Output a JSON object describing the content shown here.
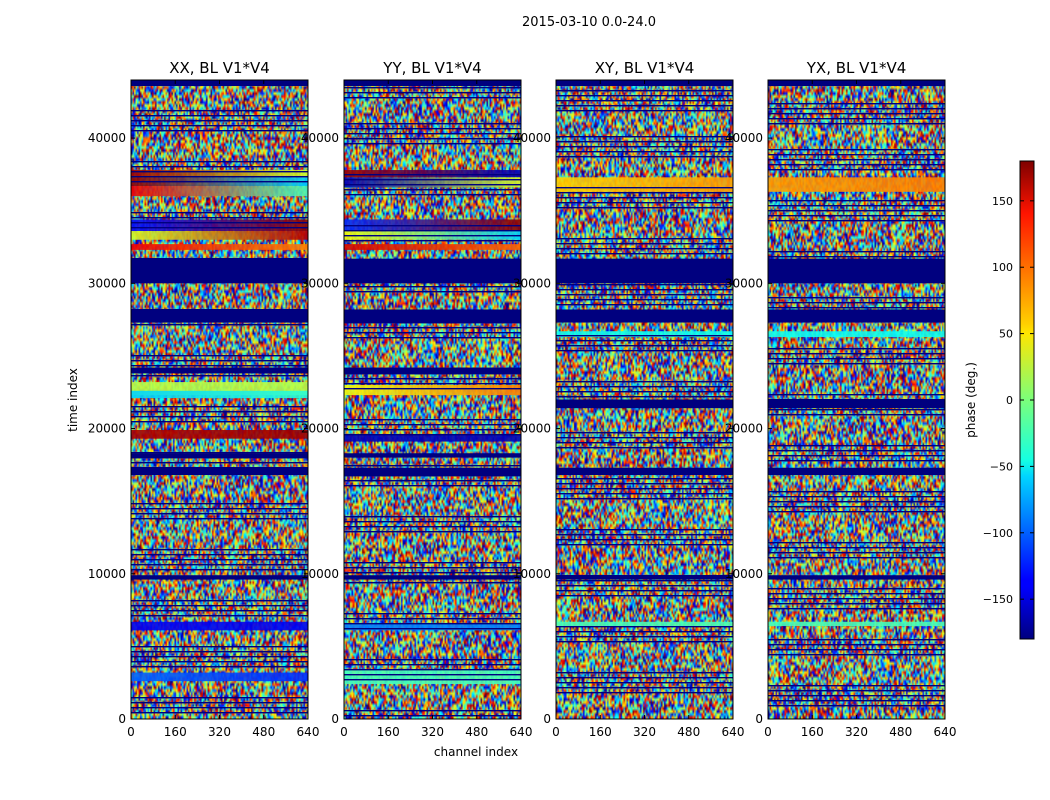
{
  "chart_data": {
    "type": "heatmap",
    "suptitle": "2015-03-10 0.0-24.0",
    "xlabel": "channel index",
    "ylabel": "time index",
    "xlim": [
      0,
      640
    ],
    "ylim": [
      0,
      44000
    ],
    "xticks": [
      0,
      160,
      320,
      480,
      640
    ],
    "yticks": [
      0,
      10000,
      20000,
      30000,
      40000
    ],
    "yticklabels": [
      "0",
      "10000",
      "20000",
      "30000",
      "40000"
    ],
    "colormap": "jet",
    "colorbar": {
      "label": "phase (deg.)",
      "range": [
        -180,
        180
      ],
      "ticks": [
        -150,
        -100,
        -50,
        0,
        50,
        100,
        150
      ],
      "ticklabels": [
        "−150",
        "−100",
        "−50",
        "0",
        "50",
        "100",
        "150"
      ]
    },
    "panels": [
      {
        "title": "XX, BL V1*V4",
        "flagged_bands": [
          [
            30000,
            31700
          ],
          [
            27300,
            28200
          ],
          [
            23800,
            24200
          ],
          [
            18000,
            18300
          ],
          [
            16800,
            17300
          ],
          [
            9600,
            9900
          ]
        ],
        "coherent_bands": [
          {
            "y": [
              37800,
              37300
            ],
            "phase": [
              170,
              30
            ]
          },
          {
            "y": [
              37300,
              36700
            ],
            "phase": [
              175,
              -60
            ]
          },
          {
            "y": [
              36700,
              36000
            ],
            "phase": [
              140,
              -20
            ]
          },
          {
            "y": [
              34400,
              33600
            ],
            "phase": [
              -130,
              175
            ]
          },
          {
            "y": [
              33600,
              33000
            ],
            "phase": [
              30,
              160
            ]
          },
          {
            "y": [
              32700,
              32300
            ],
            "phase": [
              140,
              90
            ]
          },
          {
            "y": [
              23200,
              22300
            ],
            "phase": [
              20,
              20
            ]
          },
          {
            "y": [
              22600,
              22100
            ],
            "phase": [
              -60,
              -30
            ]
          },
          {
            "y": [
              19900,
              19300
            ],
            "phase": [
              165,
              170
            ]
          },
          {
            "y": [
              17300,
              16800
            ],
            "phase": [
              180,
              180
            ]
          },
          {
            "y": [
              6700,
              6100
            ],
            "phase": [
              -140,
              -140
            ]
          },
          {
            "y": [
              3200,
              2600
            ],
            "phase": [
              -100,
              -120
            ]
          }
        ]
      },
      {
        "title": "YY, BL V1*V4",
        "flagged_bands": [
          [
            30000,
            31700
          ],
          [
            27300,
            28200
          ],
          [
            23800,
            24200
          ],
          [
            18000,
            18300
          ],
          [
            16800,
            17300
          ],
          [
            9600,
            9900
          ]
        ],
        "coherent_bands": [
          {
            "y": [
              37800,
              37300
            ],
            "phase": [
              170,
              -160
            ]
          },
          {
            "y": [
              37300,
              36600
            ],
            "phase": [
              -160,
              30
            ]
          },
          {
            "y": [
              34400,
              33600
            ],
            "phase": [
              -120,
              175
            ]
          },
          {
            "y": [
              33600,
              33000
            ],
            "phase": [
              40,
              -60
            ]
          },
          {
            "y": [
              32700,
              32300
            ],
            "phase": [
              150,
              100
            ]
          },
          {
            "y": [
              23000,
              22300
            ],
            "phase": [
              40,
              90
            ]
          },
          {
            "y": [
              19600,
              19100
            ],
            "phase": [
              -160,
              -160
            ]
          },
          {
            "y": [
              6600,
              6100
            ],
            "phase": [
              -90,
              -90
            ]
          },
          {
            "y": [
              3400,
              2400
            ],
            "phase": [
              -20,
              -20
            ]
          }
        ]
      },
      {
        "title": "XY, BL V1*V4",
        "flagged_bands": [
          [
            30000,
            31700
          ],
          [
            27300,
            28200
          ],
          [
            21400,
            22000
          ],
          [
            16800,
            17300
          ],
          [
            9600,
            9900
          ]
        ],
        "coherent_bands": [
          {
            "y": [
              37300,
              36300
            ],
            "phase": [
              60,
              80
            ]
          },
          {
            "y": [
              26700,
              26300
            ],
            "phase": [
              -40,
              -40
            ]
          },
          {
            "y": [
              6700,
              6400
            ],
            "phase": [
              -20,
              -20
            ]
          }
        ]
      },
      {
        "title": "YX, BL V1*V4",
        "flagged_bands": [
          [
            30000,
            31700
          ],
          [
            27300,
            28200
          ],
          [
            21400,
            22000
          ],
          [
            16800,
            17300
          ],
          [
            9600,
            9900
          ]
        ],
        "coherent_bands": [
          {
            "y": [
              37300,
              36300
            ],
            "phase": [
              80,
              90
            ]
          },
          {
            "y": [
              26700,
              26300
            ],
            "phase": [
              -40,
              -40
            ]
          },
          {
            "y": [
              6700,
              6400
            ],
            "phase": [
              -20,
              -20
            ]
          }
        ]
      }
    ]
  }
}
